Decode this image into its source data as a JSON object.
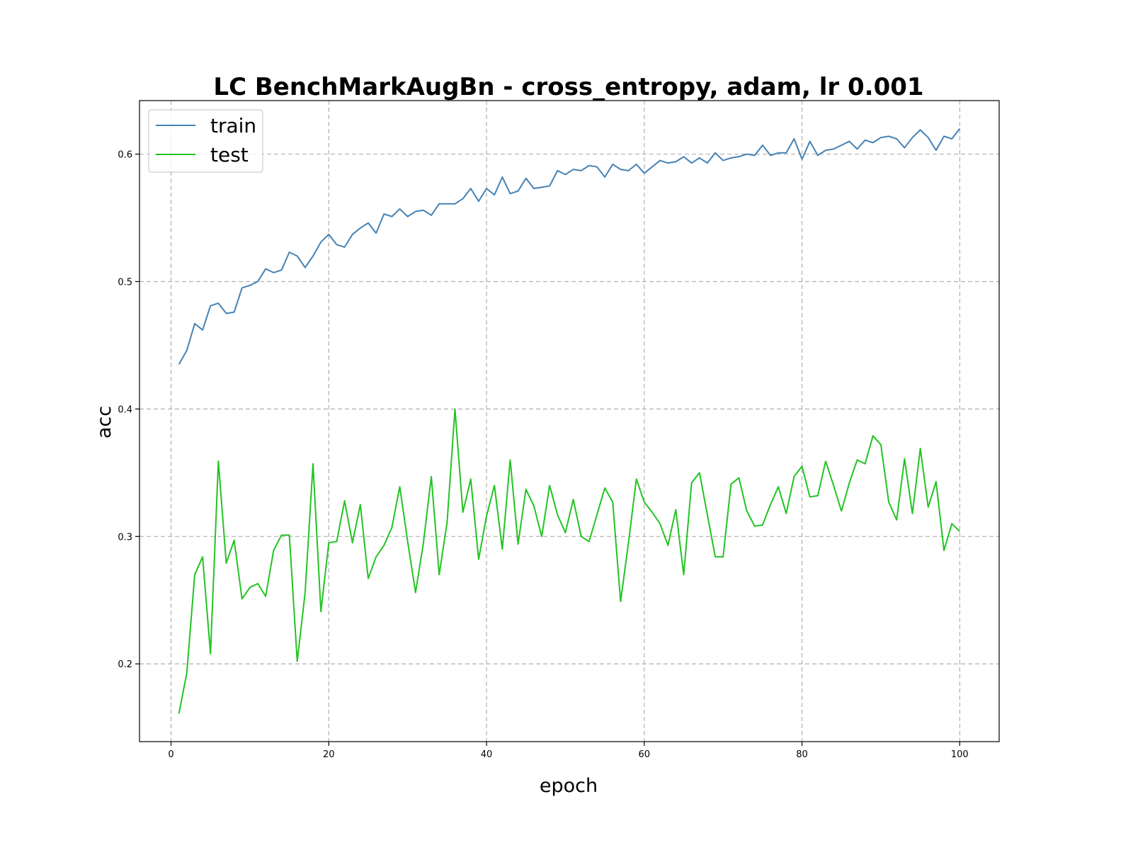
{
  "chart_data": {
    "type": "line",
    "title": "LC BenchMarkAugBn - cross_entropy, adam, lr 0.001",
    "xlabel": "epoch",
    "ylabel": "acc",
    "xlim": [
      -4,
      105
    ],
    "ylim": [
      0.139,
      0.642
    ],
    "xticks": [
      0,
      20,
      40,
      60,
      80,
      100
    ],
    "yticks": [
      0.2,
      0.3,
      0.4,
      0.5,
      0.6
    ],
    "grid": true,
    "legend": "upper left",
    "series": [
      {
        "name": "train",
        "color": "#4682b4",
        "values": [
          0.435,
          0.446,
          0.467,
          0.462,
          0.481,
          0.483,
          0.475,
          0.476,
          0.495,
          0.497,
          0.5,
          0.51,
          0.507,
          0.509,
          0.523,
          0.52,
          0.511,
          0.52,
          0.531,
          0.537,
          0.529,
          0.527,
          0.537,
          0.542,
          0.546,
          0.538,
          0.553,
          0.551,
          0.557,
          0.551,
          0.555,
          0.556,
          0.552,
          0.561,
          0.561,
          0.561,
          0.565,
          0.573,
          0.563,
          0.573,
          0.568,
          0.582,
          0.569,
          0.571,
          0.581,
          0.573,
          0.574,
          0.575,
          0.587,
          0.584,
          0.588,
          0.587,
          0.591,
          0.59,
          0.582,
          0.592,
          0.588,
          0.587,
          0.592,
          0.585,
          0.59,
          0.595,
          0.593,
          0.594,
          0.598,
          0.593,
          0.597,
          0.593,
          0.601,
          0.595,
          0.597,
          0.598,
          0.6,
          0.599,
          0.607,
          0.599,
          0.601,
          0.601,
          0.612,
          0.596,
          0.61,
          0.599,
          0.603,
          0.604,
          0.607,
          0.61,
          0.604,
          0.611,
          0.609,
          0.613,
          0.614,
          0.612,
          0.605,
          0.613,
          0.619,
          0.613,
          0.603,
          0.614,
          0.612,
          0.62
        ]
      },
      {
        "name": "test",
        "color": "#22c422",
        "values": [
          0.161,
          0.193,
          0.27,
          0.284,
          0.208,
          0.359,
          0.279,
          0.297,
          0.251,
          0.26,
          0.263,
          0.253,
          0.289,
          0.301,
          0.301,
          0.202,
          0.256,
          0.357,
          0.241,
          0.295,
          0.296,
          0.328,
          0.295,
          0.325,
          0.267,
          0.284,
          0.293,
          0.307,
          0.339,
          0.296,
          0.256,
          0.295,
          0.347,
          0.27,
          0.311,
          0.4,
          0.319,
          0.345,
          0.282,
          0.316,
          0.34,
          0.29,
          0.36,
          0.294,
          0.337,
          0.324,
          0.3,
          0.34,
          0.317,
          0.303,
          0.329,
          0.3,
          0.296,
          0.317,
          0.338,
          0.327,
          0.249,
          0.295,
          0.345,
          0.327,
          0.319,
          0.31,
          0.293,
          0.321,
          0.27,
          0.342,
          0.35,
          0.317,
          0.284,
          0.284,
          0.341,
          0.346,
          0.32,
          0.308,
          0.309,
          0.325,
          0.339,
          0.318,
          0.347,
          0.355,
          0.331,
          0.332,
          0.359,
          0.34,
          0.32,
          0.342,
          0.36,
          0.357,
          0.379,
          0.372,
          0.327,
          0.313,
          0.361,
          0.318,
          0.369,
          0.323,
          0.343,
          0.289,
          0.31,
          0.304
        ]
      }
    ]
  }
}
